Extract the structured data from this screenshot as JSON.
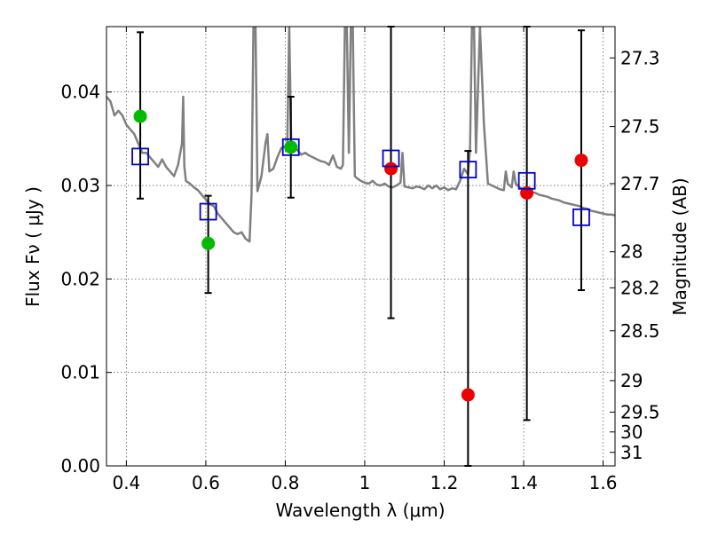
{
  "chart_data": {
    "type": "scatter",
    "xlabel": "Wavelength  λ (μm)",
    "ylabel": "Flux  Fν  ( μJy )",
    "ylabel_right": "Magnitude (AB)",
    "xlim": [
      0.35,
      1.63
    ],
    "ylim": [
      0.0,
      0.047
    ],
    "grid": true,
    "x_ticks": [
      {
        "value": 0.4,
        "label": "0.4"
      },
      {
        "value": 0.6,
        "label": "0.6"
      },
      {
        "value": 0.8,
        "label": "0.8"
      },
      {
        "value": 1.0,
        "label": "1"
      },
      {
        "value": 1.2,
        "label": "1.2"
      },
      {
        "value": 1.4,
        "label": "1.4"
      },
      {
        "value": 1.6,
        "label": "1.6"
      }
    ],
    "y_ticks": [
      {
        "value": 0.0,
        "label": "0.00"
      },
      {
        "value": 0.01,
        "label": "0.01"
      },
      {
        "value": 0.02,
        "label": "0.02"
      },
      {
        "value": 0.03,
        "label": "0.03"
      },
      {
        "value": 0.04,
        "label": "0.04"
      }
    ],
    "mag_ticks": [
      {
        "mag": 27.3,
        "label": "27.3"
      },
      {
        "mag": 27.5,
        "label": "27.5"
      },
      {
        "mag": 27.7,
        "label": "27.7"
      },
      {
        "mag": 28.0,
        "label": "28"
      },
      {
        "mag": 28.2,
        "label": "28.2"
      },
      {
        "mag": 28.5,
        "label": "28.5"
      },
      {
        "mag": 29.0,
        "label": "29"
      },
      {
        "mag": 29.5,
        "label": "29.5"
      },
      {
        "mag": 30.0,
        "label": "30"
      },
      {
        "mag": 31.0,
        "label": "31"
      }
    ],
    "series": [
      {
        "name": "model_spectrum",
        "kind": "line",
        "color": "#808080",
        "points": [
          [
            0.35,
            0.0395
          ],
          [
            0.36,
            0.039
          ],
          [
            0.37,
            0.0375
          ],
          [
            0.38,
            0.038
          ],
          [
            0.39,
            0.0375
          ],
          [
            0.4,
            0.0365
          ],
          [
            0.41,
            0.036
          ],
          [
            0.42,
            0.0355
          ],
          [
            0.43,
            0.0345
          ],
          [
            0.44,
            0.0335
          ],
          [
            0.45,
            0.0335
          ],
          [
            0.46,
            0.033
          ],
          [
            0.47,
            0.0325
          ],
          [
            0.48,
            0.032
          ],
          [
            0.49,
            0.0328
          ],
          [
            0.5,
            0.032
          ],
          [
            0.51,
            0.0315
          ],
          [
            0.52,
            0.031
          ],
          [
            0.53,
            0.0322
          ],
          [
            0.54,
            0.0345
          ],
          [
            0.543,
            0.0395
          ],
          [
            0.546,
            0.032
          ],
          [
            0.55,
            0.0305
          ],
          [
            0.56,
            0.0302
          ],
          [
            0.57,
            0.0298
          ],
          [
            0.58,
            0.0295
          ],
          [
            0.59,
            0.029
          ],
          [
            0.6,
            0.0285
          ],
          [
            0.61,
            0.028
          ],
          [
            0.62,
            0.0278
          ],
          [
            0.63,
            0.027
          ],
          [
            0.64,
            0.0265
          ],
          [
            0.65,
            0.026
          ],
          [
            0.66,
            0.0255
          ],
          [
            0.67,
            0.025
          ],
          [
            0.68,
            0.0248
          ],
          [
            0.69,
            0.025
          ],
          [
            0.7,
            0.0243
          ],
          [
            0.71,
            0.024
          ],
          [
            0.715,
            0.029
          ],
          [
            0.72,
            0.047
          ],
          [
            0.725,
            0.047
          ],
          [
            0.73,
            0.0294
          ],
          [
            0.74,
            0.031
          ],
          [
            0.75,
            0.0345
          ],
          [
            0.755,
            0.0355
          ],
          [
            0.76,
            0.0315
          ],
          [
            0.77,
            0.0318
          ],
          [
            0.78,
            0.033
          ],
          [
            0.79,
            0.034
          ],
          [
            0.8,
            0.0342
          ],
          [
            0.805,
            0.0345
          ],
          [
            0.81,
            0.047
          ],
          [
            0.815,
            0.034
          ],
          [
            0.82,
            0.0342
          ],
          [
            0.83,
            0.0338
          ],
          [
            0.84,
            0.0333
          ],
          [
            0.85,
            0.0335
          ],
          [
            0.86,
            0.0332
          ],
          [
            0.87,
            0.033
          ],
          [
            0.88,
            0.0328
          ],
          [
            0.89,
            0.0326
          ],
          [
            0.9,
            0.0325
          ],
          [
            0.91,
            0.0322
          ],
          [
            0.92,
            0.0332
          ],
          [
            0.93,
            0.032
          ],
          [
            0.94,
            0.0318
          ],
          [
            0.945,
            0.0322
          ],
          [
            0.95,
            0.047
          ],
          [
            0.955,
            0.047
          ],
          [
            0.96,
            0.0335
          ],
          [
            0.965,
            0.047
          ],
          [
            0.97,
            0.047
          ],
          [
            0.975,
            0.031
          ],
          [
            0.98,
            0.0308
          ],
          [
            0.99,
            0.0305
          ],
          [
            1.0,
            0.0303
          ],
          [
            1.01,
            0.0302
          ],
          [
            1.02,
            0.0305
          ],
          [
            1.03,
            0.0301
          ],
          [
            1.04,
            0.03
          ],
          [
            1.05,
            0.0302
          ],
          [
            1.06,
            0.0299
          ],
          [
            1.07,
            0.0298
          ],
          [
            1.08,
            0.03
          ],
          [
            1.09,
            0.0303
          ],
          [
            1.095,
            0.0335
          ],
          [
            1.1,
            0.0299
          ],
          [
            1.11,
            0.0298
          ],
          [
            1.12,
            0.0297
          ],
          [
            1.13,
            0.0299
          ],
          [
            1.14,
            0.0298
          ],
          [
            1.15,
            0.0296
          ],
          [
            1.16,
            0.03
          ],
          [
            1.17,
            0.0297
          ],
          [
            1.18,
            0.03
          ],
          [
            1.19,
            0.0296
          ],
          [
            1.2,
            0.0298
          ],
          [
            1.21,
            0.0295
          ],
          [
            1.22,
            0.0297
          ],
          [
            1.23,
            0.0296
          ],
          [
            1.24,
            0.0305
          ],
          [
            1.25,
            0.0318
          ],
          [
            1.26,
            0.0312
          ],
          [
            1.265,
            0.034
          ],
          [
            1.27,
            0.047
          ],
          [
            1.275,
            0.047
          ],
          [
            1.28,
            0.0335
          ],
          [
            1.29,
            0.047
          ],
          [
            1.3,
            0.0365
          ],
          [
            1.31,
            0.0302
          ],
          [
            1.32,
            0.03
          ],
          [
            1.33,
            0.0298
          ],
          [
            1.34,
            0.0296
          ],
          [
            1.35,
            0.0295
          ],
          [
            1.355,
            0.0315
          ],
          [
            1.36,
            0.0302
          ],
          [
            1.37,
            0.0298
          ],
          [
            1.375,
            0.0315
          ],
          [
            1.38,
            0.0302
          ],
          [
            1.39,
            0.0298
          ],
          [
            1.4,
            0.0296
          ],
          [
            1.41,
            0.0294
          ],
          [
            1.42,
            0.0293
          ],
          [
            1.43,
            0.0292
          ],
          [
            1.44,
            0.029
          ],
          [
            1.45,
            0.0289
          ],
          [
            1.46,
            0.0288
          ],
          [
            1.47,
            0.0286
          ],
          [
            1.48,
            0.0285
          ],
          [
            1.49,
            0.0284
          ],
          [
            1.5,
            0.0282
          ],
          [
            1.51,
            0.0281
          ],
          [
            1.52,
            0.028
          ],
          [
            1.53,
            0.0279
          ],
          [
            1.54,
            0.0278
          ],
          [
            1.55,
            0.0276
          ],
          [
            1.56,
            0.0275
          ],
          [
            1.57,
            0.0273
          ],
          [
            1.58,
            0.0272
          ],
          [
            1.59,
            0.0271
          ],
          [
            1.6,
            0.027
          ],
          [
            1.61,
            0.0269
          ],
          [
            1.62,
            0.0269
          ],
          [
            1.63,
            0.0268
          ]
        ]
      },
      {
        "name": "observed_detections",
        "kind": "marker",
        "marker": "circle",
        "color": "#00bb00",
        "points": [
          {
            "x": 0.435,
            "y": 0.0374,
            "yerr_low": 0.0286,
            "yerr_high": 0.0464
          },
          {
            "x": 0.606,
            "y": 0.0238,
            "yerr_low": 0.0185,
            "yerr_high": 0.0289
          },
          {
            "x": 0.814,
            "y": 0.0341,
            "yerr_low": 0.0287,
            "yerr_high": 0.0395
          }
        ]
      },
      {
        "name": "observed_nir",
        "kind": "marker",
        "marker": "circle",
        "color": "#ee0000",
        "points": [
          {
            "x": 1.066,
            "y": 0.0318,
            "yerr_low": 0.0158,
            "yerr_high": 0.047
          },
          {
            "x": 1.26,
            "y": 0.0076,
            "yerr_low": 0.0,
            "yerr_high": 0.0337
          },
          {
            "x": 1.408,
            "y": 0.0292,
            "yerr_low": 0.0049,
            "yerr_high": 0.047
          },
          {
            "x": 1.545,
            "y": 0.0327,
            "yerr_low": 0.0188,
            "yerr_high": 0.0466
          }
        ]
      },
      {
        "name": "model_band_flux",
        "kind": "marker",
        "marker": "open-square",
        "color": "#0000cc",
        "points": [
          {
            "x": 0.435,
            "y": 0.0331
          },
          {
            "x": 0.606,
            "y": 0.0272
          },
          {
            "x": 0.814,
            "y": 0.0341
          },
          {
            "x": 1.066,
            "y": 0.0329
          },
          {
            "x": 1.26,
            "y": 0.0317
          },
          {
            "x": 1.408,
            "y": 0.0305
          },
          {
            "x": 1.545,
            "y": 0.0266
          }
        ]
      }
    ]
  }
}
